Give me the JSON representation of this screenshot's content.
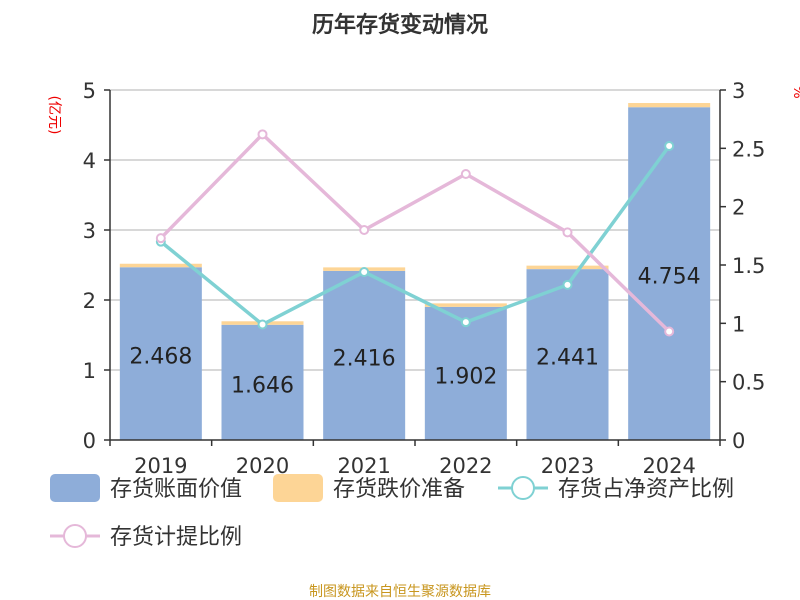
{
  "chart_data": {
    "type": "bar",
    "title": "历年存货变动情况",
    "ylabel_left": "(亿元)",
    "ylabel_right": "%",
    "ylim_left": [
      0,
      5
    ],
    "ylim_right": [
      0,
      3
    ],
    "yticks_left": [
      "0",
      "1",
      "2",
      "3",
      "4",
      "5"
    ],
    "yticks_right": [
      "0",
      "0.5",
      "1",
      "1.5",
      "2",
      "2.5",
      "3"
    ],
    "categories": [
      "2019",
      "2020",
      "2021",
      "2022",
      "2023",
      "2024"
    ],
    "series": [
      {
        "name": "存货账面价值",
        "type": "bar",
        "axis": "left",
        "color": "#8eadd9",
        "values": [
          2.468,
          1.646,
          2.416,
          1.902,
          2.441,
          4.754
        ],
        "labels": [
          "2.468",
          "1.646",
          "2.416",
          "1.902",
          "2.441",
          "4.754"
        ]
      },
      {
        "name": "存货跌价准备",
        "type": "bar",
        "axis": "left",
        "color": "#fdd596",
        "values": [
          0.05,
          0.05,
          0.05,
          0.05,
          0.05,
          0.06
        ]
      },
      {
        "name": "存货占净资产比例",
        "type": "line",
        "axis": "right",
        "color": "#7fd1d3",
        "values": [
          1.7,
          0.99,
          1.44,
          1.01,
          1.33,
          2.52
        ]
      },
      {
        "name": "存货计提比例",
        "type": "line",
        "axis": "right",
        "color": "#e5b8d9",
        "values": [
          1.73,
          2.62,
          1.8,
          2.28,
          1.78,
          0.93
        ]
      }
    ],
    "grid": true,
    "legend": "bottom",
    "source": "制图数据来自恒生聚源数据库"
  }
}
